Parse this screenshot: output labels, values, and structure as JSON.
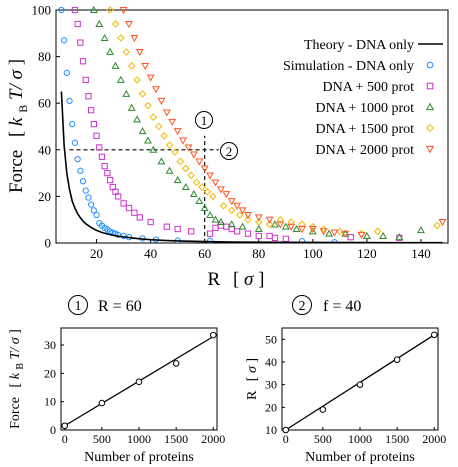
{
  "chart_data": [
    {
      "type": "scatter",
      "xlabel_parts": [
        "R",
        "[",
        "σ",
        "]"
      ],
      "ylabel_parts": [
        "Force",
        "[",
        "k",
        "B",
        "T/",
        "σ",
        "]"
      ],
      "xlim": [
        5,
        150
      ],
      "ylim": [
        0,
        100
      ],
      "xticks": [
        "20",
        "40",
        "60",
        "80",
        "100",
        "120",
        "140"
      ],
      "yticks": [
        "0",
        "20",
        "40",
        "60",
        "80",
        "100"
      ],
      "legend_position": "right",
      "theory": {
        "name": "Theory - DNA only",
        "color": "#000000",
        "points": [
          [
            7,
            65
          ],
          [
            8,
            42
          ],
          [
            9,
            30
          ],
          [
            10,
            23
          ],
          [
            11,
            18
          ],
          [
            12,
            15
          ],
          [
            13,
            12.6
          ],
          [
            14,
            10.8
          ],
          [
            15,
            9.4
          ],
          [
            16,
            8.3
          ],
          [
            18,
            6.7
          ],
          [
            20,
            5.4
          ],
          [
            22,
            4.5
          ],
          [
            25,
            3.6
          ],
          [
            28,
            2.9
          ],
          [
            32,
            2.3
          ],
          [
            36,
            1.8
          ],
          [
            40,
            1.4
          ],
          [
            45,
            1.1
          ],
          [
            50,
            0.9
          ],
          [
            60,
            0.6
          ],
          [
            70,
            0.45
          ],
          [
            80,
            0.35
          ],
          [
            100,
            0.25
          ],
          [
            120,
            0.18
          ],
          [
            148,
            0.12
          ]
        ]
      },
      "series": [
        {
          "name": "Simulation - DNA only",
          "marker": "circle",
          "color": "#1e90ff",
          "points": [
            [
              7,
              100
            ],
            [
              8,
              87
            ],
            [
              9,
              73
            ],
            [
              10,
              61
            ],
            [
              11,
              51
            ],
            [
              12,
              43
            ],
            [
              13,
              36
            ],
            [
              14,
              31
            ],
            [
              15,
              26.5
            ],
            [
              16,
              22.5
            ],
            [
              17,
              19.5
            ],
            [
              18,
              16.5
            ],
            [
              19,
              14
            ],
            [
              20,
              12
            ],
            [
              21,
              8.5
            ],
            [
              22,
              7.5
            ],
            [
              23,
              6.5
            ],
            [
              24,
              5.8
            ],
            [
              25,
              5
            ],
            [
              26,
              4.4
            ],
            [
              27,
              4
            ],
            [
              28,
              3.5
            ],
            [
              30,
              3
            ],
            [
              32,
              2.5
            ],
            [
              37,
              2
            ],
            [
              42,
              1.5
            ],
            [
              50,
              1
            ],
            [
              62,
              1
            ],
            [
              96,
              0.8
            ],
            [
              108,
              0.3
            ]
          ]
        },
        {
          "name": "DNA + 500 prot",
          "marker": "square",
          "color": "#cc33cc",
          "points": [
            [
              12,
              100
            ],
            [
              13,
              94
            ],
            [
              14,
              86
            ],
            [
              15,
              78
            ],
            [
              16,
              70
            ],
            [
              17,
              63
            ],
            [
              18,
              57
            ],
            [
              19,
              51
            ],
            [
              20,
              46
            ],
            [
              21,
              41
            ],
            [
              22,
              37
            ],
            [
              23,
              33
            ],
            [
              24,
              30
            ],
            [
              25,
              27
            ],
            [
              26,
              24
            ],
            [
              27,
              22
            ],
            [
              28,
              20
            ],
            [
              30,
              17
            ],
            [
              32,
              15
            ],
            [
              34,
              13
            ],
            [
              36,
              11
            ],
            [
              40,
              9
            ],
            [
              46,
              7
            ],
            [
              50,
              6
            ],
            [
              55,
              5
            ],
            [
              62,
              4
            ],
            [
              64,
              6.5
            ],
            [
              66,
              7.5
            ],
            [
              68,
              7
            ],
            [
              70,
              6
            ],
            [
              72,
              5
            ],
            [
              76,
              4
            ],
            [
              80,
              3
            ],
            [
              84,
              3
            ],
            [
              86,
              2.2
            ],
            [
              90,
              1.8
            ],
            [
              114,
              2.5
            ],
            [
              132,
              2.2
            ]
          ]
        },
        {
          "name": "DNA + 1000 prot",
          "marker": "triangle",
          "color": "#2e8b2e",
          "points": [
            [
              19,
              100
            ],
            [
              21,
              94
            ],
            [
              23,
              88
            ],
            [
              25,
              82
            ],
            [
              27,
              76
            ],
            [
              29,
              70
            ],
            [
              31,
              64
            ],
            [
              33,
              58
            ],
            [
              35,
              53
            ],
            [
              37,
              48
            ],
            [
              39,
              44
            ],
            [
              41,
              40
            ],
            [
              44,
              35
            ],
            [
              47,
              31
            ],
            [
              50,
              27
            ],
            [
              53,
              24
            ],
            [
              56,
              21
            ],
            [
              58,
              18
            ],
            [
              60,
              15
            ],
            [
              62,
              12
            ],
            [
              64,
              10
            ],
            [
              66,
              9
            ],
            [
              70,
              8
            ],
            [
              74,
              7
            ],
            [
              80,
              6
            ],
            [
              86,
              8
            ],
            [
              90,
              7
            ],
            [
              94,
              6
            ],
            [
              100,
              5
            ],
            [
              106,
              4
            ],
            [
              112,
              4
            ],
            [
              120,
              3
            ],
            [
              126,
              3
            ],
            [
              132,
              2.5
            ],
            [
              140,
              5.5
            ]
          ]
        },
        {
          "name": "DNA + 1500 prot",
          "marker": "diamond",
          "color": "#f5b800",
          "points": [
            [
              25,
              100
            ],
            [
              27,
              94
            ],
            [
              29,
              88
            ],
            [
              31,
              82
            ],
            [
              33,
              76
            ],
            [
              35,
              70
            ],
            [
              37,
              64
            ],
            [
              39,
              59
            ],
            [
              41,
              54
            ],
            [
              43,
              50
            ],
            [
              45,
              46
            ],
            [
              47,
              42
            ],
            [
              49,
              39
            ],
            [
              51,
              35
            ],
            [
              53,
              32
            ],
            [
              55,
              29
            ],
            [
              57,
              26
            ],
            [
              59,
              24
            ],
            [
              61,
              22
            ],
            [
              63,
              20
            ],
            [
              67,
              16
            ],
            [
              70,
              14
            ],
            [
              73,
              12
            ],
            [
              76,
              10
            ],
            [
              80,
              9
            ],
            [
              84,
              8
            ],
            [
              88,
              10
            ],
            [
              92,
              9
            ],
            [
              96,
              8
            ],
            [
              100,
              7
            ],
            [
              104,
              6
            ],
            [
              110,
              5
            ],
            [
              118,
              4
            ],
            [
              124,
              5
            ],
            [
              146,
              7.5
            ]
          ]
        },
        {
          "name": "DNA + 2000 prot",
          "marker": "triangle-down",
          "color": "#ff5522",
          "points": [
            [
              30,
              100
            ],
            [
              32,
              94
            ],
            [
              34,
              88
            ],
            [
              36,
              82
            ],
            [
              38,
              76
            ],
            [
              40,
              71
            ],
            [
              42,
              66
            ],
            [
              44,
              61
            ],
            [
              46,
              56
            ],
            [
              48,
              52
            ],
            [
              50,
              48
            ],
            [
              52,
              44
            ],
            [
              54,
              41
            ],
            [
              56,
              38
            ],
            [
              58,
              35
            ],
            [
              60,
              32
            ],
            [
              62,
              29
            ],
            [
              64,
              26
            ],
            [
              66,
              23
            ],
            [
              68,
              21
            ],
            [
              70,
              18
            ],
            [
              72,
              16
            ],
            [
              74,
              14
            ],
            [
              76,
              12
            ],
            [
              80,
              11
            ],
            [
              84,
              10
            ],
            [
              88,
              8
            ],
            [
              92,
              7
            ],
            [
              96,
              6
            ],
            [
              100,
              6
            ],
            [
              104,
              5
            ],
            [
              108,
              4.5
            ],
            [
              112,
              4
            ],
            [
              118,
              3.5
            ],
            [
              148,
              9
            ]
          ]
        }
      ],
      "guides": [
        {
          "label": "1",
          "type": "vertical",
          "x": 60,
          "y_from": 0,
          "y_to": 40
        },
        {
          "label": "2",
          "type": "horizontal",
          "y": 40,
          "x_from": 10,
          "x_to": 60
        }
      ]
    },
    {
      "type": "scatter",
      "title_badge": "1",
      "title": "R = 60",
      "xlabel": "Number of proteins",
      "ylabel_parts": [
        "Force",
        "[",
        "k",
        "B",
        "T/",
        "σ",
        "]"
      ],
      "xlim": [
        -50,
        2050
      ],
      "ylim": [
        0,
        36
      ],
      "xticks": [
        "0",
        "500",
        "1000",
        "1500",
        "2000"
      ],
      "yticks": [
        "0",
        "10",
        "20",
        "30"
      ],
      "points": [
        [
          0,
          1.5
        ],
        [
          500,
          9.5
        ],
        [
          1000,
          17
        ],
        [
          1500,
          23.5
        ],
        [
          2000,
          33.5
        ]
      ],
      "fit_line": [
        [
          0,
          1.5
        ],
        [
          2000,
          33
        ]
      ]
    },
    {
      "type": "scatter",
      "title_badge": "2",
      "title": "f = 40",
      "xlabel": "Number of proteins",
      "ylabel_parts": [
        "R",
        "[",
        "σ",
        "]"
      ],
      "xlim": [
        -50,
        2050
      ],
      "ylim": [
        10,
        55
      ],
      "xticks": [
        "0",
        "500",
        "1000",
        "1500",
        "2000"
      ],
      "yticks": [
        "10",
        "20",
        "30",
        "40",
        "50"
      ],
      "points": [
        [
          0,
          10
        ],
        [
          500,
          19
        ],
        [
          1000,
          30
        ],
        [
          1500,
          41
        ],
        [
          2000,
          52
        ]
      ],
      "fit_line": [
        [
          0,
          10
        ],
        [
          2000,
          52
        ]
      ]
    }
  ]
}
